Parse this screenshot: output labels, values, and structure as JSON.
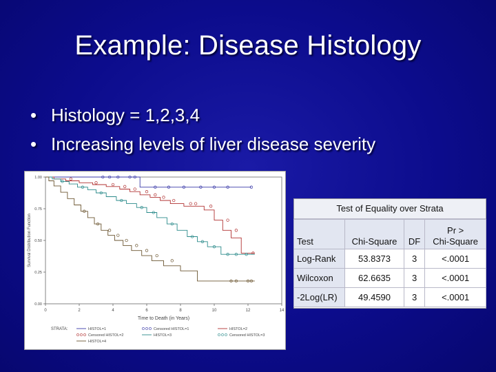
{
  "slide": {
    "title": "Example: Disease Histology",
    "bullets": [
      "Histology = 1,2,3,4",
      "Increasing levels of liver disease severity"
    ],
    "bullet_char": "•",
    "background_color": "#0c0c8c",
    "text_color": "#ffffff"
  },
  "chart_data": [
    {
      "type": "line",
      "subtype": "kaplan-meier step plot",
      "title": "",
      "xlabel": "Time to Death (in Years)",
      "ylabel": "Survival Distribution Function",
      "xlim": [
        0,
        14
      ],
      "ylim": [
        0,
        1
      ],
      "xticks": [
        "0",
        "2",
        "4",
        "6",
        "8",
        "10",
        "12",
        "14"
      ],
      "yticks": [
        "0.00",
        "0.25",
        "0.50",
        "0.75",
        "1.00"
      ],
      "grid": false,
      "legend_placement": "bottom",
      "legend_title": "STRATA:",
      "legend_entries": [
        {
          "label": "HISTOL=1",
          "kind": "line",
          "series": 0
        },
        {
          "label": "Censored HISTOL=1",
          "kind": "censored",
          "series": 0
        },
        {
          "label": "HISTOL=2",
          "kind": "line",
          "series": 1
        },
        {
          "label": "Censored HISTOL=2",
          "kind": "censored",
          "series": 1
        },
        {
          "label": "HISTOL=3",
          "kind": "line",
          "series": 2
        },
        {
          "label": "Censored HISTOL=3",
          "kind": "censored",
          "series": 2
        },
        {
          "label": "HISTOL=4",
          "kind": "line",
          "series": 3
        }
      ],
      "series": [
        {
          "name": "HISTOL=1",
          "color": "#3a3aa8",
          "steps": [
            [
              0,
              1.0
            ],
            [
              5.6,
              1.0
            ],
            [
              5.6,
              0.92
            ],
            [
              12.2,
              0.92
            ]
          ],
          "censored": [
            [
              3.4,
              1.0
            ],
            [
              3.8,
              1.0
            ],
            [
              4.3,
              1.0
            ],
            [
              5.0,
              1.0
            ],
            [
              5.3,
              1.0
            ],
            [
              6.5,
              0.92
            ],
            [
              7.3,
              0.92
            ],
            [
              8.2,
              0.92
            ],
            [
              9.2,
              0.92
            ],
            [
              10.0,
              0.92
            ],
            [
              10.8,
              0.92
            ],
            [
              12.2,
              0.92
            ]
          ]
        },
        {
          "name": "HISTOL=2",
          "color": "#b03030",
          "steps": [
            [
              0,
              1.0
            ],
            [
              0.5,
              1.0
            ],
            [
              0.5,
              0.985
            ],
            [
              1.2,
              0.985
            ],
            [
              1.2,
              0.97
            ],
            [
              2.0,
              0.97
            ],
            [
              2.0,
              0.955
            ],
            [
              2.8,
              0.955
            ],
            [
              2.8,
              0.94
            ],
            [
              3.6,
              0.94
            ],
            [
              3.6,
              0.925
            ],
            [
              4.4,
              0.925
            ],
            [
              4.4,
              0.905
            ],
            [
              5.0,
              0.905
            ],
            [
              5.0,
              0.885
            ],
            [
              5.6,
              0.885
            ],
            [
              5.6,
              0.86
            ],
            [
              6.2,
              0.86
            ],
            [
              6.2,
              0.84
            ],
            [
              6.8,
              0.84
            ],
            [
              6.8,
              0.815
            ],
            [
              7.4,
              0.815
            ],
            [
              7.4,
              0.79
            ],
            [
              8.2,
              0.79
            ],
            [
              8.2,
              0.77
            ],
            [
              9.4,
              0.77
            ],
            [
              9.4,
              0.74
            ],
            [
              10.0,
              0.74
            ],
            [
              10.0,
              0.66
            ],
            [
              10.5,
              0.66
            ],
            [
              10.5,
              0.58
            ],
            [
              11.0,
              0.58
            ],
            [
              11.0,
              0.52
            ],
            [
              11.6,
              0.52
            ],
            [
              11.6,
              0.4
            ],
            [
              12.4,
              0.4
            ]
          ],
          "censored": [
            [
              1.5,
              0.985
            ],
            [
              3.0,
              0.955
            ],
            [
              4.0,
              0.94
            ],
            [
              4.7,
              0.925
            ],
            [
              5.3,
              0.905
            ],
            [
              6.0,
              0.885
            ],
            [
              6.5,
              0.86
            ],
            [
              7.0,
              0.84
            ],
            [
              7.6,
              0.815
            ],
            [
              8.6,
              0.79
            ],
            [
              8.9,
              0.79
            ],
            [
              9.8,
              0.77
            ],
            [
              10.8,
              0.66
            ],
            [
              11.3,
              0.58
            ],
            [
              12.3,
              0.4
            ]
          ]
        },
        {
          "name": "HISTOL=3",
          "color": "#2a8a8a",
          "steps": [
            [
              0,
              1.0
            ],
            [
              0.4,
              1.0
            ],
            [
              0.4,
              0.985
            ],
            [
              0.9,
              0.985
            ],
            [
              0.9,
              0.965
            ],
            [
              1.4,
              0.965
            ],
            [
              1.4,
              0.945
            ],
            [
              1.9,
              0.945
            ],
            [
              1.9,
              0.92
            ],
            [
              2.5,
              0.92
            ],
            [
              2.5,
              0.9
            ],
            [
              3.0,
              0.9
            ],
            [
              3.0,
              0.875
            ],
            [
              3.6,
              0.875
            ],
            [
              3.6,
              0.845
            ],
            [
              4.2,
              0.845
            ],
            [
              4.2,
              0.815
            ],
            [
              4.8,
              0.815
            ],
            [
              4.8,
              0.79
            ],
            [
              5.4,
              0.79
            ],
            [
              5.4,
              0.76
            ],
            [
              6.0,
              0.76
            ],
            [
              6.0,
              0.72
            ],
            [
              6.6,
              0.72
            ],
            [
              6.6,
              0.68
            ],
            [
              7.2,
              0.68
            ],
            [
              7.2,
              0.63
            ],
            [
              7.8,
              0.63
            ],
            [
              7.8,
              0.58
            ],
            [
              8.4,
              0.58
            ],
            [
              8.4,
              0.53
            ],
            [
              9.0,
              0.53
            ],
            [
              9.0,
              0.49
            ],
            [
              9.6,
              0.49
            ],
            [
              9.6,
              0.45
            ],
            [
              10.4,
              0.45
            ],
            [
              10.4,
              0.39
            ],
            [
              12.4,
              0.39
            ]
          ],
          "censored": [
            [
              1.0,
              0.965
            ],
            [
              2.2,
              0.92
            ],
            [
              3.3,
              0.875
            ],
            [
              4.5,
              0.815
            ],
            [
              5.7,
              0.76
            ],
            [
              6.4,
              0.72
            ],
            [
              7.5,
              0.63
            ],
            [
              8.7,
              0.53
            ],
            [
              9.3,
              0.49
            ],
            [
              10.0,
              0.45
            ],
            [
              10.8,
              0.39
            ],
            [
              11.3,
              0.39
            ],
            [
              11.9,
              0.39
            ]
          ]
        },
        {
          "name": "HISTOL=4",
          "color": "#6b5530",
          "steps": [
            [
              0,
              1.0
            ],
            [
              0.2,
              1.0
            ],
            [
              0.2,
              0.97
            ],
            [
              0.5,
              0.97
            ],
            [
              0.5,
              0.93
            ],
            [
              0.9,
              0.93
            ],
            [
              0.9,
              0.88
            ],
            [
              1.3,
              0.88
            ],
            [
              1.3,
              0.83
            ],
            [
              1.7,
              0.83
            ],
            [
              1.7,
              0.78
            ],
            [
              2.1,
              0.78
            ],
            [
              2.1,
              0.73
            ],
            [
              2.5,
              0.73
            ],
            [
              2.5,
              0.68
            ],
            [
              2.9,
              0.68
            ],
            [
              2.9,
              0.63
            ],
            [
              3.3,
              0.63
            ],
            [
              3.3,
              0.58
            ],
            [
              3.7,
              0.58
            ],
            [
              3.7,
              0.54
            ],
            [
              4.1,
              0.54
            ],
            [
              4.1,
              0.5
            ],
            [
              4.6,
              0.5
            ],
            [
              4.6,
              0.46
            ],
            [
              5.1,
              0.46
            ],
            [
              5.1,
              0.42
            ],
            [
              5.7,
              0.42
            ],
            [
              5.7,
              0.38
            ],
            [
              6.3,
              0.38
            ],
            [
              6.3,
              0.34
            ],
            [
              7.0,
              0.34
            ],
            [
              7.0,
              0.3
            ],
            [
              8.0,
              0.3
            ],
            [
              8.0,
              0.26
            ],
            [
              9.0,
              0.26
            ],
            [
              9.0,
              0.18
            ],
            [
              12.4,
              0.18
            ]
          ],
          "censored": [
            [
              2.3,
              0.73
            ],
            [
              3.1,
              0.63
            ],
            [
              3.8,
              0.58
            ],
            [
              4.3,
              0.54
            ],
            [
              4.8,
              0.5
            ],
            [
              5.4,
              0.46
            ],
            [
              6.0,
              0.42
            ],
            [
              6.6,
              0.38
            ],
            [
              7.5,
              0.34
            ],
            [
              11.0,
              0.18
            ],
            [
              11.3,
              0.18
            ],
            [
              12.0,
              0.18
            ],
            [
              12.2,
              0.18
            ]
          ]
        }
      ]
    },
    {
      "type": "table",
      "title": "Test of Equality over Strata",
      "columns": [
        "Test",
        "Chi-Square",
        "DF",
        "Pr > Chi-Square"
      ],
      "header_line1": [
        "",
        "",
        "",
        "Pr >"
      ],
      "header_line2": [
        "Test",
        "Chi-Square",
        "DF",
        "Chi-Square"
      ],
      "rows": [
        {
          "test": "Log-Rank",
          "chisq": "53.8373",
          "df": "3",
          "p": "<.0001"
        },
        {
          "test": "Wilcoxon",
          "chisq": "62.6635",
          "df": "3",
          "p": "<.0001"
        },
        {
          "test": "-2Log(LR)",
          "chisq": "49.4590",
          "df": "3",
          "p": "<.0001"
        }
      ]
    }
  ]
}
